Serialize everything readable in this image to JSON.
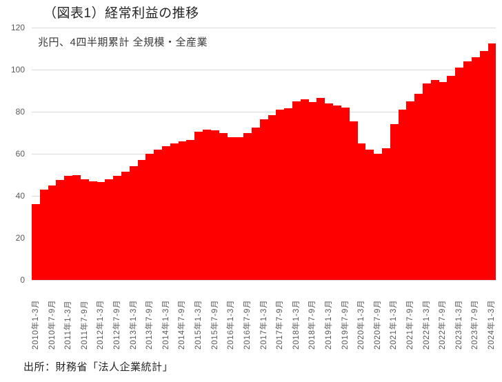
{
  "header": {
    "title": "（図表1）経常利益の推移",
    "subtitle": "兆円、4四半期累計 全規模・全産業"
  },
  "source_note": "出所：財務省「法人企業統計」",
  "colors": {
    "bar": "#FF0000",
    "gridline": "#D9D9D9",
    "tick_text": "#595959"
  },
  "chart_data": {
    "type": "bar",
    "title": "（図表1）経常利益の推移",
    "subtitle_unit": "兆円、4四半期累計 全規模・全産業",
    "ylabel": "",
    "xlabel": "",
    "ylim": [
      0,
      120
    ],
    "yticks": [
      0,
      20,
      40,
      60,
      80,
      100,
      120
    ],
    "grid": "horizontal",
    "legend": "none",
    "bar_gap": 0,
    "xtick_every_n_bars": 2,
    "xtick_labels": [
      "2010年1-3月",
      "2010年7-9月",
      "2011年1-3月",
      "2011年7-9月",
      "2012年1-3月",
      "2012年7-9月",
      "2013年1-3月",
      "2013年7-9月",
      "2014年1-3月",
      "2014年7-9月",
      "2015年1-3月",
      "2015年7-9月",
      "2016年1-3月",
      "2016年7-9月",
      "2017年1-3月",
      "2017年7-9月",
      "2018年1-3月",
      "2018年7-9月",
      "2019年1-3月",
      "2019年7-9月",
      "2020年1-3月",
      "2020年7-9月",
      "2021年1-3月",
      "2021年7-9月",
      "2022年1-3月",
      "2022年7-9月",
      "2023年1-3月",
      "2023年7-9月",
      "2024年1-3月"
    ],
    "values_note": "quarterly bars from 2010Q1 to 2024Q1, trillion yen, 4-quarter cumulative",
    "values": [
      36,
      43,
      45,
      47.5,
      49.5,
      50,
      48,
      47,
      46.5,
      48,
      49.5,
      51.5,
      54,
      57,
      60,
      62,
      63.5,
      65,
      66,
      66.5,
      70.5,
      71.5,
      71,
      70,
      68,
      68,
      70,
      72.5,
      76.5,
      78.5,
      81,
      81.5,
      85,
      86,
      84.5,
      86.5,
      84,
      83,
      82,
      75.5,
      65,
      62,
      60,
      62.5,
      74,
      81,
      85,
      88.5,
      93.5,
      95,
      94,
      97,
      101,
      104,
      106,
      109,
      112.5
    ]
  }
}
